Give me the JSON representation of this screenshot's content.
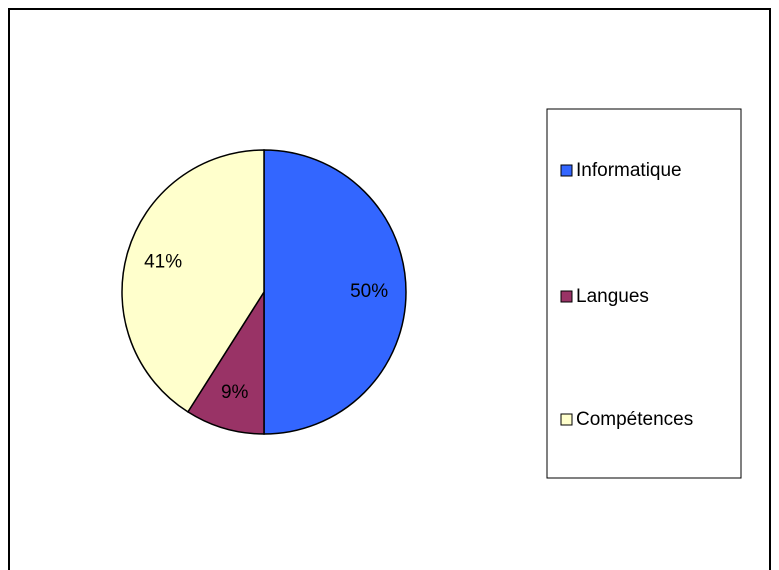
{
  "chart_data": {
    "type": "pie",
    "categories": [
      "Informatique",
      "Langues",
      "Compétences"
    ],
    "values": [
      50,
      9,
      41
    ],
    "value_labels": [
      "50%",
      "9%",
      "41%"
    ],
    "colors": [
      "#3366ff",
      "#993366",
      "#ffffcc"
    ],
    "legend": "right"
  }
}
